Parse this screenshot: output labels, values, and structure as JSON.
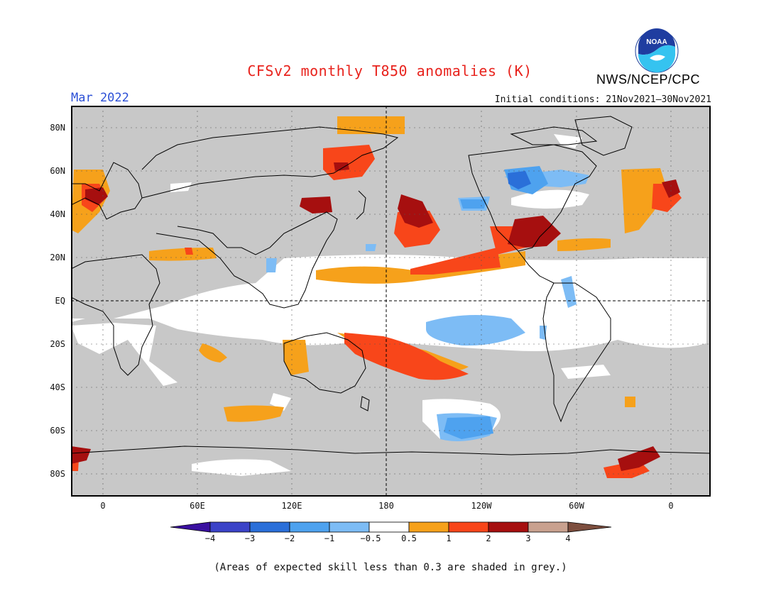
{
  "header": {
    "title": "CFSv2 monthly T850 anomalies (K)",
    "month": "Mar 2022",
    "initial_conditions": "Initial conditions: 21Nov2021–30Nov2021",
    "agency": "NWS/NCEP/CPC",
    "logo_text": "NOAA"
  },
  "map": {
    "y_ticks": [
      "80N",
      "60N",
      "40N",
      "20N",
      "EQ",
      "20S",
      "40S",
      "60S",
      "80S"
    ],
    "x_ticks": [
      "0",
      "60E",
      "120E",
      "180",
      "120W",
      "60W",
      "0"
    ],
    "ocean_color": "#c8c8c8",
    "coast_color": "#000000"
  },
  "colorbar": {
    "labels": [
      "−4",
      "−3",
      "−2",
      "−1",
      "−0.5",
      "0.5",
      "1",
      "2",
      "3",
      "4"
    ],
    "colors": [
      "#3a10a0",
      "#3b43c8",
      "#2a6fd9",
      "#4ea2ef",
      "#7dbcf5",
      "#ffffff",
      "#f6a11b",
      "#f8461a",
      "#a60f0f",
      "#c9a18f",
      "#7d4e3e"
    ]
  },
  "footnote": "(Areas of expected skill less than 0.3 are shaded in grey.)"
}
